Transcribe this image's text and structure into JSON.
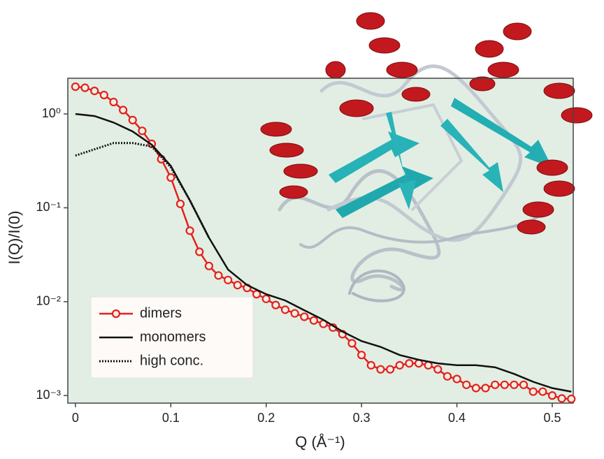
{
  "chart_data": {
    "type": "line",
    "xlabel": "Q (Å⁻¹)",
    "ylabel": "I(Q)/I(0)",
    "xlim": [
      -0.008,
      0.522
    ],
    "xticks": [
      0,
      0.1,
      0.2,
      0.3,
      0.4,
      0.5
    ],
    "ylim": [
      0.00083,
      2.4
    ],
    "log_y": true,
    "yticks": [
      {
        "value": 1,
        "label": "10⁰"
      },
      {
        "value": 0.1,
        "label": "10⁻¹"
      },
      {
        "value": 0.01,
        "label": "10⁻²"
      },
      {
        "value": 0.001,
        "label": "10⁻³"
      }
    ],
    "legend": "lower left",
    "series": [
      {
        "name": "dimers",
        "color": "#e3211c",
        "marker": "circle",
        "dash": "solid",
        "x": [
          0,
          0.01,
          0.02,
          0.03,
          0.04,
          0.05,
          0.06,
          0.07,
          0.08,
          0.09,
          0.1,
          0.11,
          0.12,
          0.13,
          0.14,
          0.15,
          0.16,
          0.17,
          0.18,
          0.19,
          0.2,
          0.21,
          0.22,
          0.23,
          0.24,
          0.25,
          0.26,
          0.27,
          0.28,
          0.29,
          0.3,
          0.31,
          0.32,
          0.33,
          0.34,
          0.35,
          0.36,
          0.37,
          0.38,
          0.39,
          0.4,
          0.41,
          0.42,
          0.43,
          0.44,
          0.45,
          0.46,
          0.47,
          0.48,
          0.49,
          0.5,
          0.51,
          0.52
        ],
        "values": [
          1.95,
          1.9,
          1.76,
          1.59,
          1.34,
          1.1,
          0.86,
          0.66,
          0.48,
          0.33,
          0.21,
          0.11,
          0.057,
          0.034,
          0.024,
          0.019,
          0.017,
          0.015,
          0.014,
          0.012,
          0.0107,
          0.0092,
          0.0082,
          0.0075,
          0.0069,
          0.0063,
          0.0058,
          0.0053,
          0.0045,
          0.0036,
          0.0027,
          0.0021,
          0.0019,
          0.0019,
          0.0021,
          0.0022,
          0.0022,
          0.0021,
          0.0019,
          0.0016,
          0.0015,
          0.0013,
          0.0012,
          0.0012,
          0.0013,
          0.0013,
          0.0013,
          0.0013,
          0.0011,
          0.0011,
          0.001,
          0.00093,
          0.00092
        ]
      },
      {
        "name": "monomers",
        "color": "#111111",
        "marker": "none",
        "dash": "solid",
        "x": [
          0,
          0.02,
          0.04,
          0.06,
          0.08,
          0.1,
          0.12,
          0.14,
          0.16,
          0.18,
          0.2,
          0.22,
          0.24,
          0.26,
          0.28,
          0.3,
          0.32,
          0.34,
          0.36,
          0.38,
          0.4,
          0.42,
          0.44,
          0.46,
          0.48,
          0.5,
          0.52
        ],
        "values": [
          1.0,
          0.95,
          0.81,
          0.65,
          0.47,
          0.28,
          0.12,
          0.048,
          0.022,
          0.015,
          0.012,
          0.0103,
          0.0081,
          0.0064,
          0.0048,
          0.0038,
          0.0033,
          0.0027,
          0.0024,
          0.0022,
          0.0021,
          0.0021,
          0.002,
          0.0017,
          0.0014,
          0.0012,
          0.0011
        ]
      },
      {
        "name": "high conc.",
        "color": "#111111",
        "marker": "none",
        "dash": "dotted",
        "x": [
          0,
          0.02,
          0.04,
          0.06,
          0.08,
          0.1,
          0.12,
          0.14
        ],
        "values": [
          0.36,
          0.42,
          0.49,
          0.49,
          0.45,
          0.27,
          0.12,
          0.048
        ]
      }
    ]
  }
}
